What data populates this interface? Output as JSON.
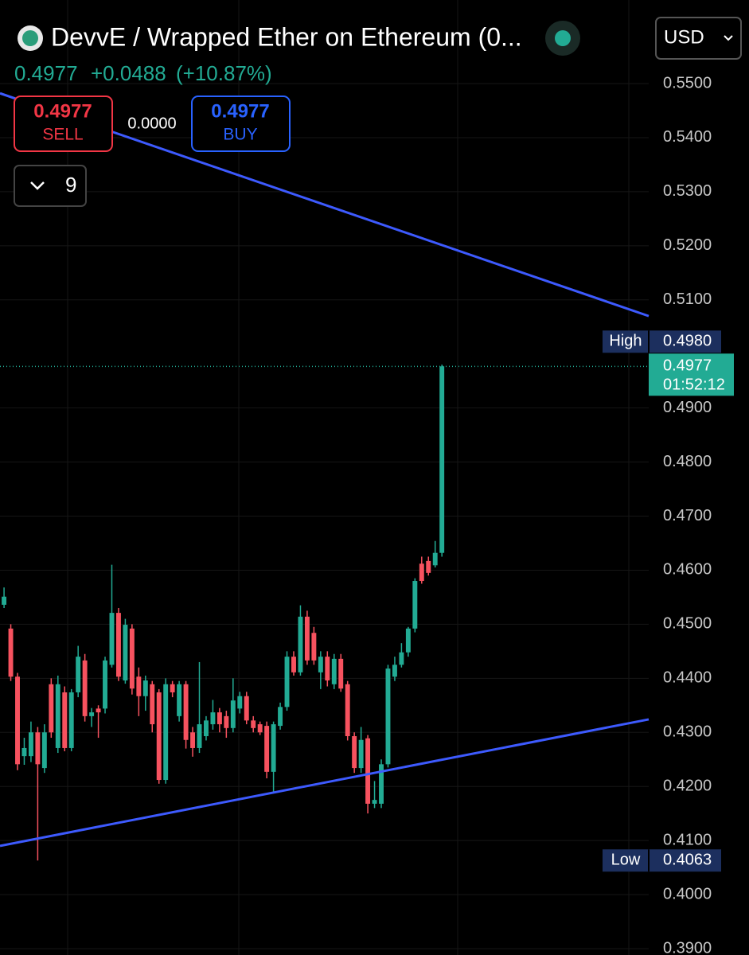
{
  "header": {
    "title": "DevvE / Wrapped Ether on Ethereum (0...",
    "price": "0.4977",
    "change": "+0.0488",
    "change_pct": "(+10.87%)",
    "currency": "USD",
    "sell": {
      "price": "0.4977",
      "label": "SELL"
    },
    "spread": "0.0000",
    "buy": {
      "price": "0.4977",
      "label": "BUY"
    },
    "indicators": "9"
  },
  "chart_data": {
    "type": "candlestick",
    "up_color": "#22ab94",
    "down_color": "#f7525f",
    "open": [
      0.4536,
      0.4492,
      0.4403,
      0.4256,
      0.4256,
      0.43,
      0.4234,
      0.4389,
      0.4271,
      0.4374,
      0.4271,
      0.4374,
      0.4433,
      0.433,
      0.4344,
      0.4344,
      0.4425,
      0.4521,
      0.4396,
      0.4492,
      0.4403,
      0.4367,
      0.4389,
      0.4374,
      0.4212,
      0.4389,
      0.433,
      0.4389,
      0.43,
      0.4271,
      0.4293,
      0.4315,
      0.4337,
      0.433,
      0.4308,
      0.4344,
      0.4367,
      0.4322,
      0.4315,
      0.4312,
      0.4227,
      0.4312,
      0.4347,
      0.444,
      0.4411,
      0.4514,
      0.4484,
      0.4411,
      0.444,
      0.4389,
      0.4436,
      0.4389,
      0.4293,
      0.4234,
      0.4289,
      0.4168,
      0.4168,
      0.4241,
      0.4403,
      0.4425,
      0.4448,
      0.4492,
      0.4612,
      0.4617,
      0.4609,
      0.4632
    ],
    "high": [
      0.4568,
      0.45,
      0.441,
      0.429,
      0.432,
      0.431,
      0.4315,
      0.44,
      0.4405,
      0.4385,
      0.438,
      0.446,
      0.4445,
      0.4345,
      0.435,
      0.444,
      0.461,
      0.453,
      0.451,
      0.45,
      0.442,
      0.4405,
      0.4395,
      0.438,
      0.44,
      0.4395,
      0.4395,
      0.4395,
      0.431,
      0.443,
      0.433,
      0.436,
      0.4345,
      0.434,
      0.44,
      0.4375,
      0.4375,
      0.433,
      0.432,
      0.432,
      0.432,
      0.4355,
      0.445,
      0.445,
      0.4535,
      0.4525,
      0.4495,
      0.445,
      0.445,
      0.4445,
      0.4445,
      0.4395,
      0.43,
      0.431,
      0.4295,
      0.421,
      0.425,
      0.4425,
      0.444,
      0.4465,
      0.4495,
      0.4585,
      0.4625,
      0.4625,
      0.4654,
      0.498
    ],
    "low": [
      0.453,
      0.4395,
      0.423,
      0.424,
      0.4245,
      0.4063,
      0.4225,
      0.429,
      0.4262,
      0.4265,
      0.4265,
      0.4365,
      0.432,
      0.431,
      0.429,
      0.4335,
      0.442,
      0.4395,
      0.439,
      0.437,
      0.433,
      0.434,
      0.43,
      0.4205,
      0.4205,
      0.4365,
      0.432,
      0.427,
      0.4255,
      0.4262,
      0.4285,
      0.4305,
      0.43,
      0.429,
      0.43,
      0.4335,
      0.4315,
      0.43,
      0.4295,
      0.4215,
      0.419,
      0.4305,
      0.434,
      0.4405,
      0.4405,
      0.4425,
      0.4425,
      0.438,
      0.4385,
      0.438,
      0.4375,
      0.4285,
      0.4225,
      0.4225,
      0.415,
      0.416,
      0.416,
      0.4235,
      0.4395,
      0.442,
      0.444,
      0.4485,
      0.4575,
      0.459,
      0.4605,
      0.4625
    ],
    "close": [
      0.4551,
      0.4403,
      0.4241,
      0.4271,
      0.43,
      0.4241,
      0.43,
      0.43,
      0.4389,
      0.4271,
      0.4374,
      0.444,
      0.433,
      0.4337,
      0.4337,
      0.4433,
      0.4521,
      0.4403,
      0.4499,
      0.4381,
      0.4367,
      0.4396,
      0.4315,
      0.4212,
      0.4389,
      0.4374,
      0.4389,
      0.4286,
      0.4271,
      0.4315,
      0.4322,
      0.4337,
      0.4315,
      0.4308,
      0.4359,
      0.4367,
      0.4322,
      0.4308,
      0.43,
      0.4227,
      0.4315,
      0.4347,
      0.444,
      0.4411,
      0.4514,
      0.4433,
      0.4433,
      0.444,
      0.4396,
      0.4436,
      0.4381,
      0.4293,
      0.4234,
      0.4286,
      0.4168,
      0.4175,
      0.4241,
      0.4418,
      0.4425,
      0.4448,
      0.4492,
      0.458,
      0.458,
      0.4595,
      0.4632,
      0.4977
    ],
    "xlim": [
      -0.6,
      95.7
    ],
    "ylim": [
      0.39,
      0.55
    ],
    "yticks": [
      {
        "value": 0.55,
        "label": "0.5500"
      },
      {
        "value": 0.54,
        "label": "0.5400"
      },
      {
        "value": 0.53,
        "label": "0.5300"
      },
      {
        "value": 0.52,
        "label": "0.5200"
      },
      {
        "value": 0.51,
        "label": "0.5100"
      },
      {
        "value": 0.49,
        "label": "0.4900"
      },
      {
        "value": 0.48,
        "label": "0.4800"
      },
      {
        "value": 0.47,
        "label": "0.4700"
      },
      {
        "value": 0.46,
        "label": "0.4600"
      },
      {
        "value": 0.45,
        "label": "0.4500"
      },
      {
        "value": 0.44,
        "label": "0.4400"
      },
      {
        "value": 0.43,
        "label": "0.4300"
      },
      {
        "value": 0.42,
        "label": "0.4200"
      },
      {
        "value": 0.41,
        "label": "0.4100"
      },
      {
        "value": 0.4,
        "label": "0.4000"
      },
      {
        "value": 0.39,
        "label": "0.3900"
      }
    ],
    "grid": true,
    "trendlines": [
      {
        "x": [
          -0.6,
          95.7
        ],
        "y": [
          0.5482,
          0.507
        ],
        "color": "#3d5afe"
      },
      {
        "x": [
          -0.6,
          95.7
        ],
        "y": [
          0.409,
          0.4324
        ],
        "color": "#3d5afe"
      }
    ],
    "last_price": 0.4977,
    "countdown": "01:52:12",
    "high_marker": {
      "name": "High",
      "value": 0.498,
      "value_label": "0.4980"
    },
    "low_marker": {
      "name": "Low",
      "value": 0.4063,
      "value_label": "0.4063"
    }
  }
}
